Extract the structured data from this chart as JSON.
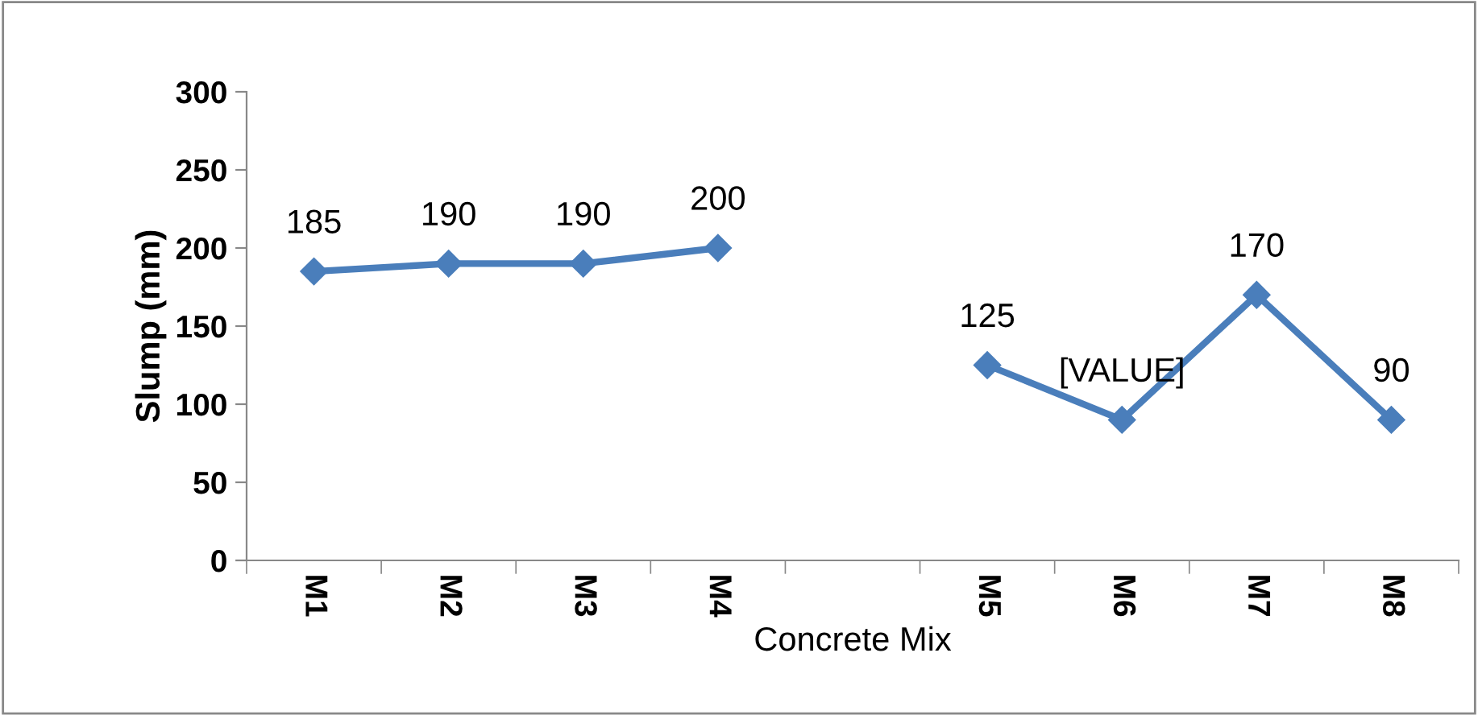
{
  "chart_data": {
    "type": "line",
    "categories": [
      "M1",
      "M2",
      "M3",
      "M4",
      null,
      "M5",
      "M6",
      "M7",
      "M8"
    ],
    "series": [
      {
        "color": "#4a7ebb",
        "values": [
          185,
          190,
          190,
          200,
          null,
          125,
          90,
          170,
          90
        ],
        "value_labels": [
          "185",
          "190",
          "190",
          "200",
          null,
          "125",
          "[VALUE]",
          "170",
          "90"
        ]
      }
    ],
    "xlabel": "Concrete Mix",
    "ylabel": "Slump (mm)",
    "ylim": [
      0,
      300
    ],
    "yticks": [
      0,
      50,
      100,
      150,
      200,
      250,
      300
    ],
    "marker": "diamond",
    "line_style": "solid",
    "grid": false,
    "legend": false
  }
}
